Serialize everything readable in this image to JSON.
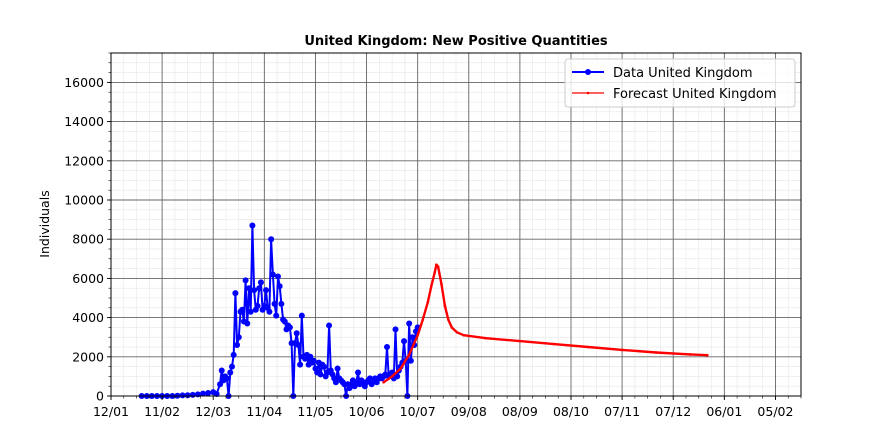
{
  "chart_data": {
    "type": "line",
    "title": "United Kingdom: New Positive Quantities",
    "xlabel": "",
    "ylabel": "Individuals",
    "x_tick_labels": [
      "12/01",
      "11/02",
      "12/03",
      "11/04",
      "11/05",
      "10/06",
      "10/07",
      "09/08",
      "08/09",
      "08/10",
      "07/11",
      "07/12",
      "06/01",
      "05/02"
    ],
    "x_tick_days": [
      0,
      30,
      60,
      90,
      120,
      150,
      180,
      210,
      240,
      270,
      300,
      330,
      360,
      390
    ],
    "xlim_days": [
      0,
      405
    ],
    "ylim": [
      0,
      17500
    ],
    "y_ticks": [
      0,
      2000,
      4000,
      6000,
      8000,
      10000,
      12000,
      14000,
      16000
    ],
    "grid": true,
    "legend_position": "top-right",
    "series": [
      {
        "name": "Data United Kingdom",
        "color": "#0000ff",
        "points": [
          [
            18,
            0
          ],
          [
            21,
            0
          ],
          [
            24,
            0
          ],
          [
            27,
            0
          ],
          [
            30,
            0
          ],
          [
            33,
            0
          ],
          [
            36,
            0
          ],
          [
            39,
            10
          ],
          [
            42,
            30
          ],
          [
            45,
            40
          ],
          [
            48,
            60
          ],
          [
            51,
            80
          ],
          [
            54,
            120
          ],
          [
            57,
            150
          ],
          [
            60,
            200
          ],
          [
            62,
            100
          ],
          [
            64,
            600
          ],
          [
            65,
            1300
          ],
          [
            66,
            800
          ],
          [
            67,
            1000
          ],
          [
            68,
            900
          ],
          [
            69,
            0
          ],
          [
            70,
            1200
          ],
          [
            71,
            1500
          ],
          [
            72,
            2100
          ],
          [
            73,
            5250
          ],
          [
            74,
            2600
          ],
          [
            75,
            3000
          ],
          [
            76,
            4300
          ],
          [
            77,
            4400
          ],
          [
            78,
            3800
          ],
          [
            79,
            5900
          ],
          [
            80,
            3700
          ],
          [
            81,
            5500
          ],
          [
            82,
            4300
          ],
          [
            83,
            8700
          ],
          [
            84,
            5400
          ],
          [
            85,
            4400
          ],
          [
            86,
            4600
          ],
          [
            87,
            5500
          ],
          [
            88,
            5800
          ],
          [
            89,
            4400
          ],
          [
            90,
            4600
          ],
          [
            91,
            5400
          ],
          [
            92,
            4500
          ],
          [
            93,
            4300
          ],
          [
            94,
            8000
          ],
          [
            95,
            6200
          ],
          [
            96,
            4700
          ],
          [
            97,
            4100
          ],
          [
            98,
            6100
          ],
          [
            99,
            5600
          ],
          [
            100,
            4700
          ],
          [
            101,
            3900
          ],
          [
            102,
            3800
          ],
          [
            103,
            3400
          ],
          [
            104,
            3600
          ],
          [
            105,
            3500
          ],
          [
            106,
            2700
          ],
          [
            107,
            0
          ],
          [
            108,
            2700
          ],
          [
            109,
            3200
          ],
          [
            110,
            2600
          ],
          [
            111,
            1600
          ],
          [
            112,
            4100
          ],
          [
            113,
            2000
          ],
          [
            114,
            1900
          ],
          [
            115,
            2100
          ],
          [
            116,
            1600
          ],
          [
            117,
            2000
          ],
          [
            118,
            1700
          ],
          [
            119,
            1800
          ],
          [
            120,
            1400
          ],
          [
            121,
            1200
          ],
          [
            122,
            1700
          ],
          [
            123,
            1100
          ],
          [
            124,
            1600
          ],
          [
            125,
            1500
          ],
          [
            126,
            1000
          ],
          [
            127,
            1200
          ],
          [
            128,
            3600
          ],
          [
            129,
            1300
          ],
          [
            130,
            1100
          ],
          [
            131,
            900
          ],
          [
            132,
            700
          ],
          [
            133,
            1400
          ],
          [
            134,
            900
          ],
          [
            135,
            800
          ],
          [
            136,
            700
          ],
          [
            137,
            600
          ],
          [
            138,
            0
          ],
          [
            139,
            600
          ],
          [
            140,
            400
          ],
          [
            141,
            600
          ],
          [
            142,
            800
          ],
          [
            143,
            500
          ],
          [
            144,
            700
          ],
          [
            145,
            1200
          ],
          [
            146,
            600
          ],
          [
            147,
            800
          ],
          [
            148,
            700
          ],
          [
            149,
            500
          ],
          [
            150,
            700
          ],
          [
            151,
            800
          ],
          [
            152,
            900
          ],
          [
            153,
            600
          ],
          [
            154,
            800
          ],
          [
            155,
            900
          ],
          [
            156,
            700
          ],
          [
            157,
            900
          ],
          [
            158,
            1000
          ],
          [
            159,
            900
          ],
          [
            160,
            1000
          ],
          [
            161,
            1100
          ],
          [
            162,
            2500
          ],
          [
            163,
            1000
          ],
          [
            164,
            1100
          ],
          [
            165,
            1200
          ],
          [
            166,
            900
          ],
          [
            167,
            3400
          ],
          [
            168,
            1000
          ],
          [
            169,
            1300
          ],
          [
            170,
            1500
          ],
          [
            171,
            1700
          ],
          [
            172,
            2800
          ],
          [
            173,
            1800
          ],
          [
            174,
            0
          ],
          [
            175,
            3700
          ],
          [
            176,
            1800
          ],
          [
            177,
            3000
          ],
          [
            178,
            2600
          ],
          [
            179,
            3300
          ],
          [
            180,
            3500
          ]
        ]
      },
      {
        "name": "Forecast United Kingdom",
        "color": "#ff0000",
        "points": [
          [
            160,
            700
          ],
          [
            165,
            1000
          ],
          [
            170,
            1400
          ],
          [
            175,
            2100
          ],
          [
            180,
            3100
          ],
          [
            183,
            3900
          ],
          [
            186,
            4800
          ],
          [
            188,
            5600
          ],
          [
            190,
            6300
          ],
          [
            191,
            6700
          ],
          [
            192,
            6600
          ],
          [
            194,
            5700
          ],
          [
            196,
            4600
          ],
          [
            198,
            3900
          ],
          [
            200,
            3500
          ],
          [
            203,
            3250
          ],
          [
            207,
            3100
          ],
          [
            220,
            2950
          ],
          [
            240,
            2800
          ],
          [
            260,
            2650
          ],
          [
            280,
            2500
          ],
          [
            300,
            2350
          ],
          [
            320,
            2220
          ],
          [
            340,
            2120
          ],
          [
            350,
            2080
          ]
        ]
      }
    ]
  }
}
